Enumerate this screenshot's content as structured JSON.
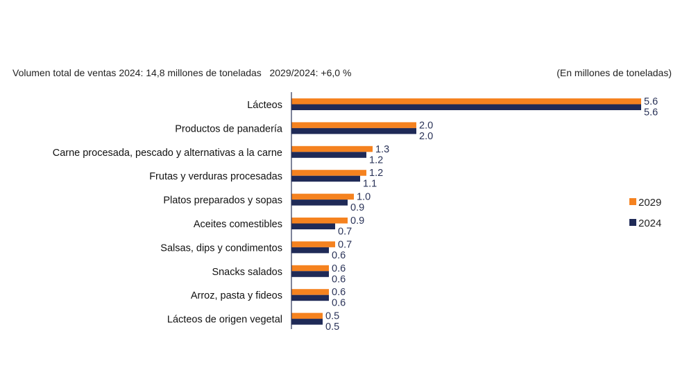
{
  "chart_data": {
    "type": "bar",
    "orientation": "horizontal",
    "title": "Volumen total de ventas 2024: 14,8 millones de toneladas   2029/2024: +6,0 %",
    "unit_note": "(En millones de toneladas)",
    "categories": [
      "Lácteos",
      "Productos de panadería",
      "Carne procesada, pescado y alternativas a la carne",
      "Frutas y verduras procesadas",
      "Platos preparados y sopas",
      "Aceites comestibles",
      "Salsas, dips y condimentos",
      "Snacks salados",
      "Arroz, pasta y fideos",
      "Lácteos de origen vegetal"
    ],
    "series": [
      {
        "name": "2029",
        "color": "#f5821f",
        "values": [
          5.6,
          2.0,
          1.3,
          1.2,
          1.0,
          0.9,
          0.7,
          0.6,
          0.6,
          0.5
        ]
      },
      {
        "name": "2024",
        "color": "#1f2a57",
        "values": [
          5.6,
          2.0,
          1.2,
          1.1,
          0.9,
          0.7,
          0.6,
          0.6,
          0.6,
          0.5
        ]
      }
    ],
    "xlim": [
      0,
      5.6
    ],
    "grid": false,
    "legend": "right"
  }
}
